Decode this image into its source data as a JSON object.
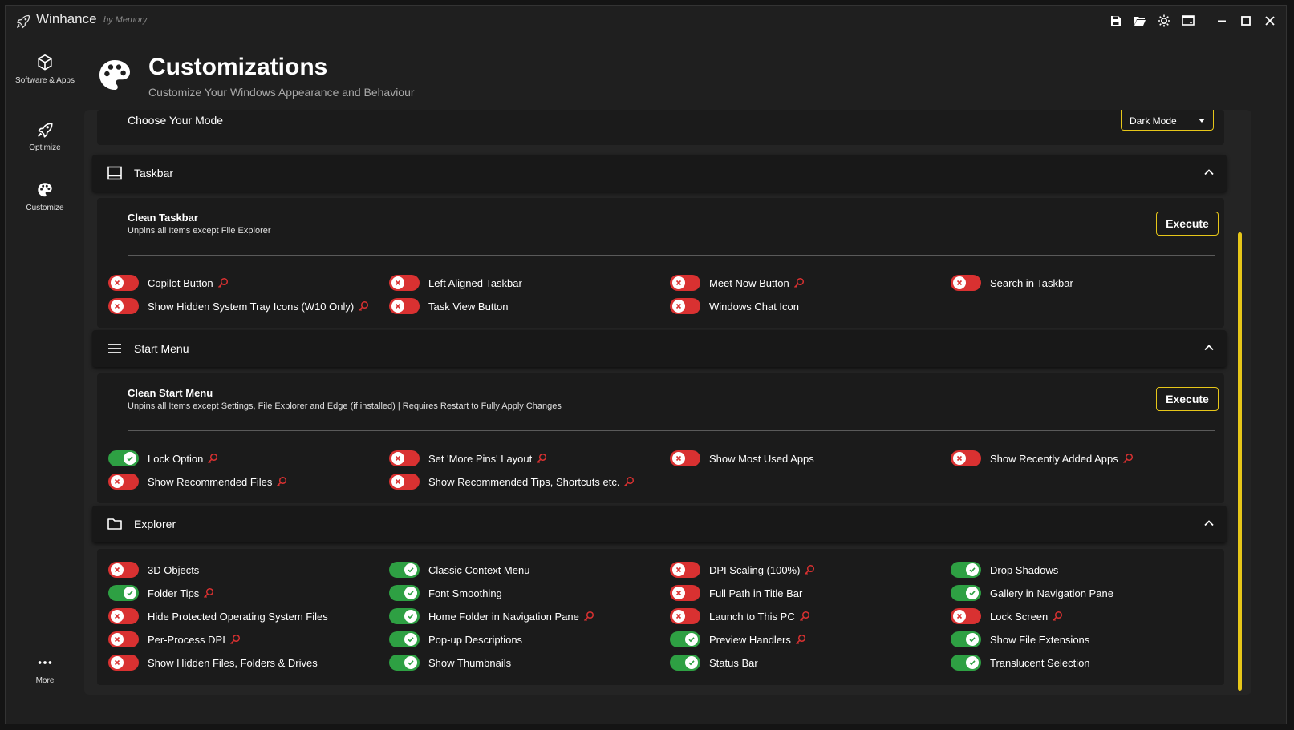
{
  "app": {
    "title": "Winhance",
    "subtitle": "by Memory"
  },
  "titlebar_icons": [
    "save-icon",
    "folder-open-icon",
    "theme-icon",
    "window-dropdown-icon",
    "minimize-icon",
    "maximize-icon",
    "close-icon"
  ],
  "sidebar": {
    "items": [
      {
        "label": "Software & Apps",
        "icon": "box-icon"
      },
      {
        "label": "Optimize",
        "icon": "rocket-icon"
      },
      {
        "label": "Customize",
        "icon": "palette-icon"
      }
    ],
    "more_label": "More"
  },
  "header": {
    "title": "Customizations",
    "subtitle": "Customize Your Windows Appearance and Behaviour"
  },
  "mode": {
    "label": "Choose Your Mode",
    "value": "Dark Mode"
  },
  "colors": {
    "accent": "#e6c619",
    "toggle_on": "#2ea043",
    "toggle_off": "#d93131"
  },
  "taskbar": {
    "title": "Taskbar",
    "action": {
      "title": "Clean Taskbar",
      "desc": "Unpins all Items except File Explorer",
      "button": "Execute"
    },
    "toggles": [
      {
        "label": "Copilot Button",
        "on": false,
        "admin": true
      },
      {
        "label": "Left Aligned Taskbar",
        "on": false,
        "admin": false
      },
      {
        "label": "Meet Now Button",
        "on": false,
        "admin": true
      },
      {
        "label": "Search in Taskbar",
        "on": false,
        "admin": false
      },
      {
        "label": "Show Hidden System Tray Icons (W10 Only)",
        "on": false,
        "admin": true
      },
      {
        "label": "Task View Button",
        "on": false,
        "admin": false
      },
      {
        "label": "Windows Chat Icon",
        "on": false,
        "admin": false
      }
    ]
  },
  "start_menu": {
    "title": "Start Menu",
    "action": {
      "title": "Clean Start Menu",
      "desc": "Unpins all Items except Settings, File Explorer and Edge (if installed) | Requires Restart to Fully Apply Changes",
      "button": "Execute"
    },
    "toggles": [
      {
        "label": "Lock Option",
        "on": true,
        "admin": true
      },
      {
        "label": "Set 'More Pins' Layout",
        "on": false,
        "admin": true
      },
      {
        "label": "Show Most Used Apps",
        "on": false,
        "admin": false
      },
      {
        "label": "Show Recently Added Apps",
        "on": false,
        "admin": true
      },
      {
        "label": "Show Recommended Files",
        "on": false,
        "admin": true
      },
      {
        "label": "Show Recommended Tips, Shortcuts etc.",
        "on": false,
        "admin": true
      }
    ]
  },
  "explorer": {
    "title": "Explorer",
    "toggles": [
      {
        "label": "3D Objects",
        "on": false,
        "admin": false
      },
      {
        "label": "Classic Context Menu",
        "on": true,
        "admin": false
      },
      {
        "label": "DPI Scaling (100%)",
        "on": false,
        "admin": true
      },
      {
        "label": "Drop Shadows",
        "on": true,
        "admin": false
      },
      {
        "label": "Folder Tips",
        "on": true,
        "admin": true
      },
      {
        "label": "Font Smoothing",
        "on": true,
        "admin": false
      },
      {
        "label": "Full Path in Title Bar",
        "on": false,
        "admin": false
      },
      {
        "label": "Gallery in Navigation Pane",
        "on": true,
        "admin": false
      },
      {
        "label": "Hide Protected Operating System Files",
        "on": false,
        "admin": false
      },
      {
        "label": "Home Folder in Navigation Pane",
        "on": true,
        "admin": true
      },
      {
        "label": "Launch to This PC",
        "on": false,
        "admin": true
      },
      {
        "label": "Lock Screen",
        "on": false,
        "admin": true
      },
      {
        "label": "Per-Process DPI",
        "on": false,
        "admin": true
      },
      {
        "label": "Pop-up Descriptions",
        "on": true,
        "admin": false
      },
      {
        "label": "Preview Handlers",
        "on": true,
        "admin": true
      },
      {
        "label": "Show File Extensions",
        "on": true,
        "admin": false
      },
      {
        "label": "Show Hidden Files, Folders & Drives",
        "on": false,
        "admin": false
      },
      {
        "label": "Show Thumbnails",
        "on": true,
        "admin": false
      },
      {
        "label": "Status Bar",
        "on": true,
        "admin": false
      },
      {
        "label": "Translucent Selection",
        "on": true,
        "admin": false
      }
    ]
  }
}
